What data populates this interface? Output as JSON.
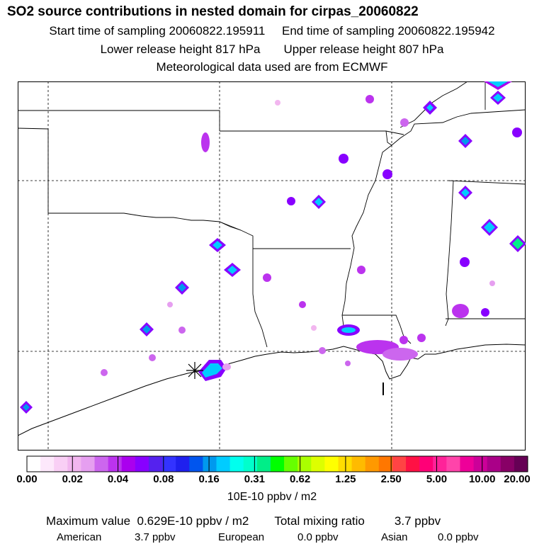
{
  "header": {
    "title": "SO2 source contributions in nested domain for cirpas_20060822",
    "start_time": "Start time of sampling 20060822.195911",
    "end_time": "End time of sampling 20060822.195942",
    "lower_release": "Lower release height  817 hPa",
    "upper_release": "Upper release height  807 hPa",
    "met_data": "Meteorological data used are from ECMWF"
  },
  "legend": {
    "tick_labels": [
      "0.00",
      "0.02",
      "0.04",
      "0.08",
      "0.16",
      "0.31",
      "0.62",
      "1.25",
      "2.50",
      "5.00",
      "10.00",
      "20.00"
    ],
    "units": "10E-10 ppbv / m2",
    "colors": [
      "#ffffff",
      "#fde8fb",
      "#f9cff5",
      "#f2b6ef",
      "#e69ff0",
      "#cc66ee",
      "#bb33ee",
      "#aa00ee",
      "#8800ff",
      "#5522ee",
      "#3333ff",
      "#1f20ee",
      "#0055ee",
      "#0099ee",
      "#00ccff",
      "#00ffee",
      "#00ffcc",
      "#00ee88",
      "#00ff00",
      "#66ff00",
      "#aaff00",
      "#ddff00",
      "#ffff00",
      "#ffdd00",
      "#ffbb00",
      "#ff9900",
      "#ff7700",
      "#ff4444",
      "#ff1144",
      "#ff0077",
      "#ff2299",
      "#ff44aa",
      "#ee0099",
      "#cc0099",
      "#aa0088",
      "#880066",
      "#660055"
    ]
  },
  "footer": {
    "max_label": "Maximum value",
    "max_value": "0.629E-10 ppbv / m2",
    "total_label": "Total mixing ratio",
    "total_value": "3.7 ppbv",
    "regions": [
      {
        "name": "American",
        "value": "3.7 ppbv"
      },
      {
        "name": "European",
        "value": "0.0 ppbv"
      },
      {
        "name": "Asian",
        "value": "0.0 ppbv"
      }
    ]
  }
}
